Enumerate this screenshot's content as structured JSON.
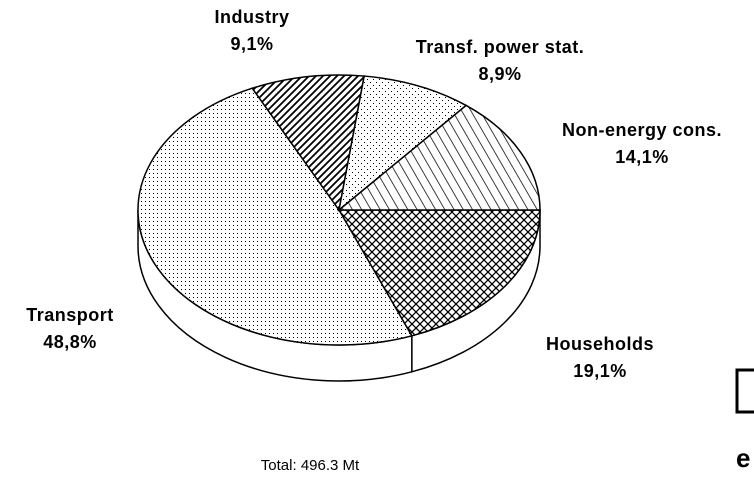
{
  "chart_data": {
    "type": "pie",
    "categories": [
      "Households",
      "Transport",
      "Industry",
      "Transf. power stat.",
      "Non-energy cons."
    ],
    "values": [
      19.1,
      48.8,
      9.1,
      8.9,
      14.1
    ],
    "value_labels": [
      "19,1%",
      "48,8%",
      "9,1%",
      "8,9%",
      "14,1%"
    ],
    "color": "#000000",
    "annotation": "Total: 496.3 Mt",
    "corner_text": "e"
  }
}
